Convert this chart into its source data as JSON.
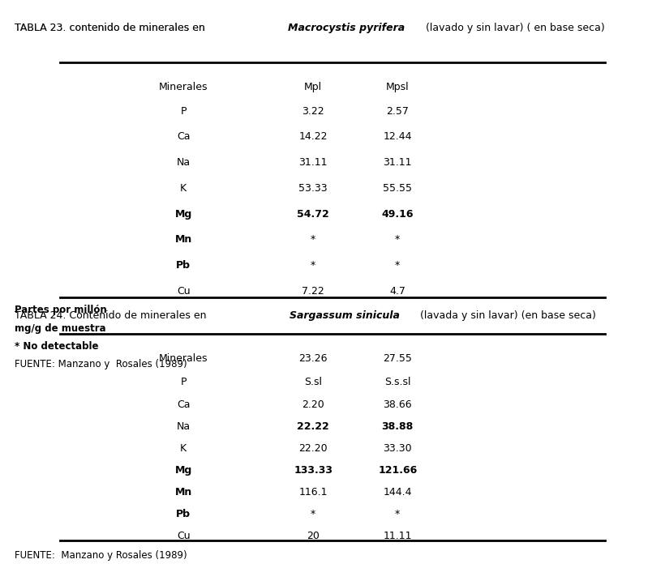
{
  "title23": "TABLA 23. contenido de minerales en ",
  "title23_italic": "Macrocystis pyrifera",
  "title23_rest": " (lavado y sin lavar) ( en base seca)",
  "header23": [
    "Minerales",
    "Mpl",
    "Mpsl"
  ],
  "rows23": [
    [
      "P",
      "3.22",
      "2.57"
    ],
    [
      "Ca",
      "14.22",
      "12.44"
    ],
    [
      "Na",
      "31.11",
      "31.11"
    ],
    [
      "K",
      "53.33",
      "55.55"
    ],
    [
      "Mg",
      "54.72",
      "49.16"
    ],
    [
      "Mn",
      "*",
      "*"
    ],
    [
      "Pb",
      "*",
      "*"
    ],
    [
      "Cu",
      "7.22",
      "4.7"
    ]
  ],
  "footnote23_lines": [
    "Partes por millón",
    "mg/g de muestra",
    "* No detectable",
    "FUENTE: Manzano y  Rosales (1989)"
  ],
  "footnote23_bold": [
    true,
    true,
    true,
    false
  ],
  "title24": "TABLA 24. Contenido de minerales en ",
  "title24_italic": "Sargassum sinicula",
  "title24_rest": " (lavada y sin lavar) (en base seca)",
  "header24_col1": "Minerales",
  "header24_col2": "23.26",
  "header24_col3": "27.55",
  "subheader24_col1": "",
  "subheader24_col2": "S.sl",
  "subheader24_col3": "S.s.sl",
  "rows24": [
    [
      "Ca",
      "2.20",
      "38.66"
    ],
    [
      "Na",
      "22.22",
      "38.88"
    ],
    [
      "K",
      "22.20",
      "33.30"
    ],
    [
      "Mg",
      "133.33",
      "121.66"
    ],
    [
      "Mn",
      "116.1",
      "144.4"
    ],
    [
      "Pb",
      "*",
      "*"
    ],
    [
      "Cu",
      "20",
      "11.11"
    ]
  ],
  "footnote24": "FUENTE:  Manzano y Rosales (1989)",
  "bg_color": "#ffffff",
  "text_color": "#000000",
  "line_color": "#000000"
}
